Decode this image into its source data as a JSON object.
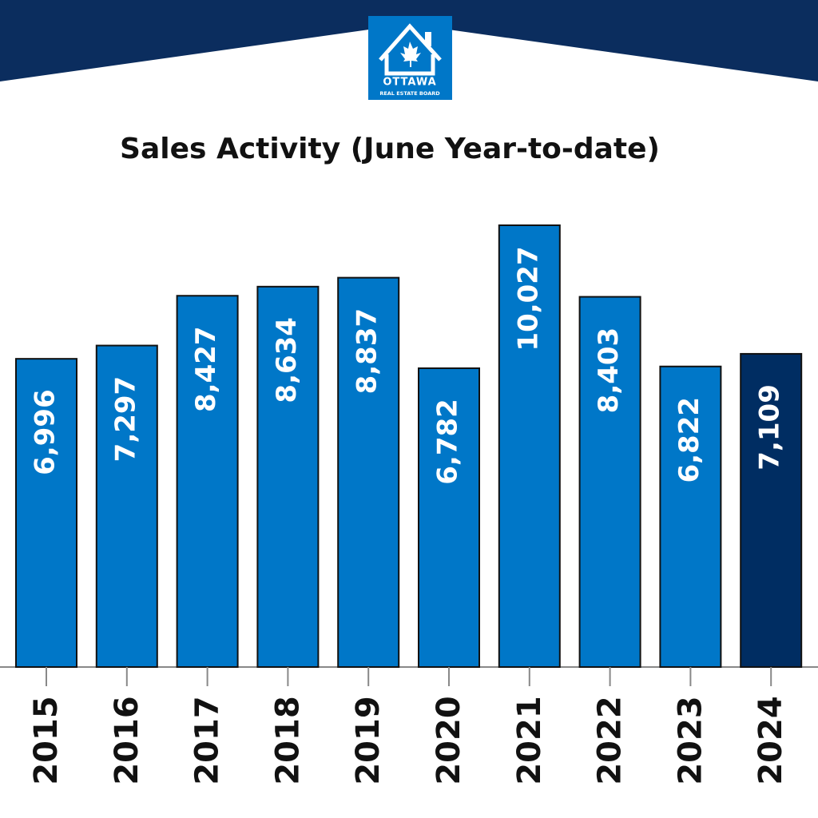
{
  "logo": {
    "name": "OTTAWA",
    "subtitle": "REAL ESTATE BOARD"
  },
  "chart_data": {
    "type": "bar",
    "title": "Sales Activity (June Year-to-date)",
    "categories": [
      "2015",
      "2016",
      "2017",
      "2018",
      "2019",
      "2020",
      "2021",
      "2022",
      "2023",
      "2024"
    ],
    "values": [
      6996,
      7297,
      8427,
      8634,
      8837,
      6782,
      10027,
      8403,
      6822,
      7109
    ],
    "value_labels": [
      "6,996",
      "7,297",
      "8,427",
      "8,634",
      "8,837",
      "6,782",
      "10,027",
      "8,403",
      "6,822",
      "7,109"
    ],
    "colors": [
      "#0077c8",
      "#0077c8",
      "#0077c8",
      "#0077c8",
      "#0077c8",
      "#0077c8",
      "#0077c8",
      "#0077c8",
      "#0077c8",
      "#002d62"
    ]
  }
}
